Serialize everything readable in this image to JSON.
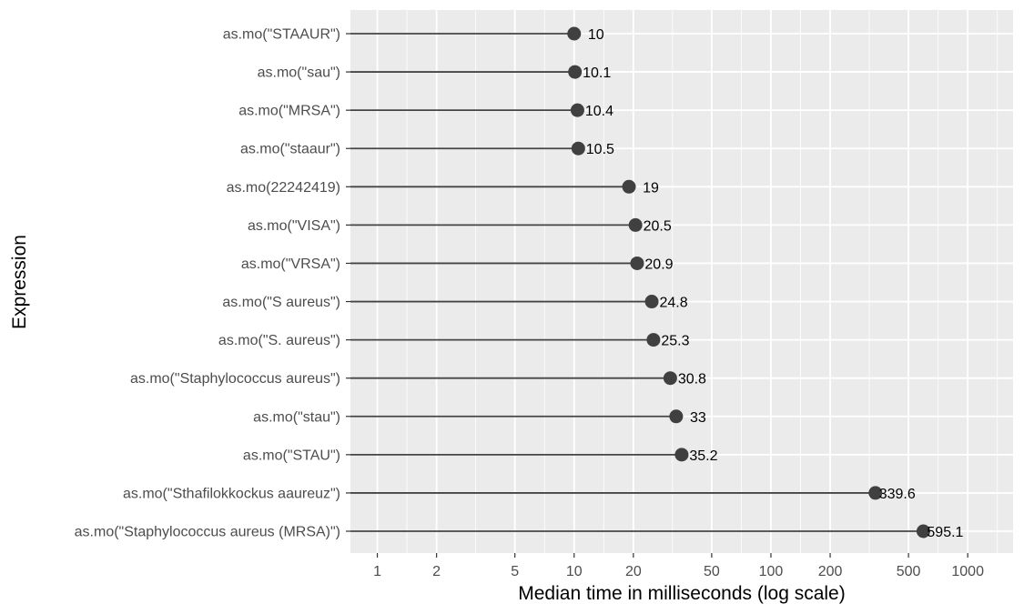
{
  "chart_data": {
    "type": "lollipop",
    "orientation": "horizontal",
    "xlabel": "Median time in milliseconds (log scale)",
    "ylabel": "Expression",
    "x_scale": "log10",
    "xlim": [
      0.73,
      1700
    ],
    "x_ticks": [
      1,
      2,
      5,
      10,
      20,
      50,
      100,
      200,
      500,
      1000
    ],
    "x_tick_labels": [
      "1",
      "2",
      "5",
      "10",
      "20",
      "50",
      "100",
      "200",
      "500",
      "1000"
    ],
    "grid": true,
    "background": "#ebebeb",
    "point_color": "#404040",
    "categories": [
      "as.mo(\"STAAUR\")",
      "as.mo(\"sau\")",
      "as.mo(\"MRSA\")",
      "as.mo(\"staaur\")",
      "as.mo(22242419)",
      "as.mo(\"VISA\")",
      "as.mo(\"VRSA\")",
      "as.mo(\"S aureus\")",
      "as.mo(\"S. aureus\")",
      "as.mo(\"Staphylococcus aureus\")",
      "as.mo(\"stau\")",
      "as.mo(\"STAU\")",
      "as.mo(\"Sthafilokkockus aaureuz\")",
      "as.mo(\"Staphylococcus aureus (MRSA)\")"
    ],
    "values": [
      10,
      10.1,
      10.4,
      10.5,
      19,
      20.5,
      20.9,
      24.8,
      25.3,
      30.8,
      33,
      35.2,
      339.6,
      595.1
    ],
    "value_labels": [
      "10",
      "10.1",
      "10.4",
      "10.5",
      "19",
      "20.5",
      "20.9",
      "24.8",
      "25.3",
      "30.8",
      "33",
      "35.2",
      "339.6",
      "595.1"
    ]
  }
}
